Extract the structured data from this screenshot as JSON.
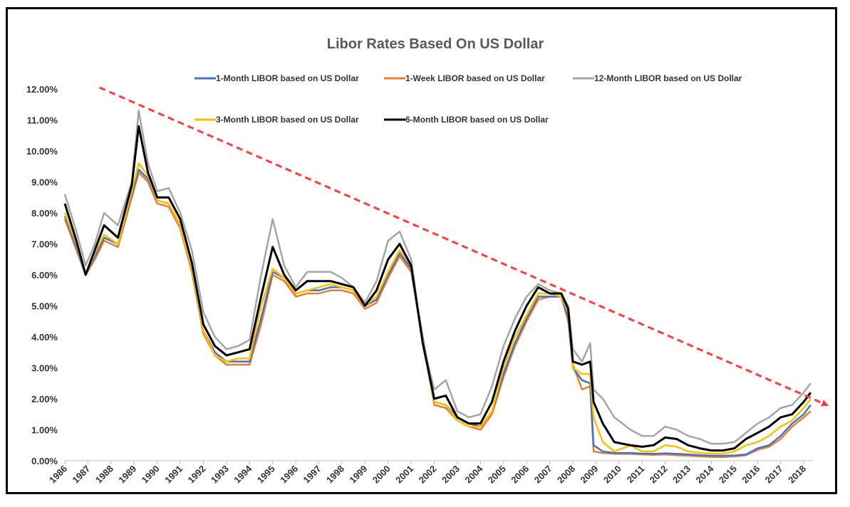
{
  "chart_data": {
    "type": "line",
    "title": "Libor Rates Based On US Dollar",
    "xlabel": "",
    "ylabel": "",
    "xlim": [
      1986,
      2018.4
    ],
    "ylim": [
      0,
      12
    ],
    "y_ticks": [
      "0.00%",
      "1.00%",
      "2.00%",
      "3.00%",
      "4.00%",
      "5.00%",
      "6.00%",
      "7.00%",
      "8.00%",
      "9.00%",
      "10.00%",
      "11.00%",
      "12.00%"
    ],
    "x_ticks": [
      "1986",
      "1987",
      "1988",
      "1989",
      "1990",
      "1991",
      "1992",
      "1993",
      "1994",
      "1995",
      "1996",
      "1997",
      "1998",
      "1999",
      "2000",
      "2001",
      "2002",
      "2003",
      "2004",
      "2005",
      "2006",
      "2007",
      "2008",
      "2009",
      "2010",
      "2011",
      "2012",
      "2013",
      "2014",
      "2015",
      "2016",
      "2017",
      "2018"
    ],
    "grid": false,
    "legend_position": "top",
    "series": [
      {
        "name": "1-Month LIBOR based on US Dollar",
        "color": "#4472C4",
        "x": [
          1986.0,
          1986.5,
          1986.9,
          1987.3,
          1987.7,
          1988.3,
          1988.9,
          1989.2,
          1989.6,
          1990.0,
          1990.5,
          1991.0,
          1991.5,
          1992.0,
          1992.5,
          1993.0,
          1993.5,
          1994.0,
          1994.5,
          1995.0,
          1995.5,
          1996.0,
          1996.5,
          1997.0,
          1997.5,
          1998.0,
          1998.5,
          1999.0,
          1999.5,
          2000.0,
          2000.5,
          2001.0,
          2001.5,
          2002.0,
          2002.5,
          2003.0,
          2003.5,
          2004.0,
          2004.5,
          2005.0,
          2005.5,
          2006.0,
          2006.5,
          2007.0,
          2007.5,
          2007.8,
          2008.0,
          2008.4,
          2008.75,
          2008.9,
          2009.3,
          2009.8,
          2010.5,
          2011.0,
          2011.5,
          2012.0,
          2012.5,
          2013.0,
          2013.5,
          2014.0,
          2014.5,
          2015.0,
          2015.5,
          2016.0,
          2016.5,
          2017.0,
          2017.5,
          2018.0,
          2018.3
        ],
        "y": [
          7.9,
          6.9,
          6.0,
          6.6,
          7.2,
          7.0,
          8.6,
          9.4,
          9.1,
          8.4,
          8.3,
          7.6,
          6.2,
          4.2,
          3.5,
          3.2,
          3.2,
          3.2,
          4.6,
          6.1,
          5.9,
          5.4,
          5.5,
          5.5,
          5.6,
          5.6,
          5.5,
          5.0,
          5.2,
          6.0,
          6.7,
          6.2,
          4.0,
          1.9,
          1.8,
          1.4,
          1.2,
          1.1,
          1.6,
          2.8,
          3.8,
          4.6,
          5.3,
          5.3,
          5.3,
          4.6,
          3.0,
          2.6,
          2.5,
          0.5,
          0.3,
          0.25,
          0.25,
          0.23,
          0.22,
          0.24,
          0.22,
          0.2,
          0.18,
          0.16,
          0.16,
          0.17,
          0.2,
          0.4,
          0.5,
          0.8,
          1.2,
          1.5,
          1.8
        ]
      },
      {
        "name": "1-Week LIBOR based on US Dollar",
        "color": "#ED7D31",
        "x": [
          1986.0,
          1986.5,
          1986.9,
          1987.3,
          1987.7,
          1988.3,
          1988.9,
          1989.2,
          1989.6,
          1990.0,
          1990.5,
          1991.0,
          1991.5,
          1992.0,
          1992.5,
          1993.0,
          1993.5,
          1994.0,
          1994.5,
          1995.0,
          1995.5,
          1996.0,
          1996.5,
          1997.0,
          1997.5,
          1998.0,
          1998.5,
          1999.0,
          1999.5,
          2000.0,
          2000.5,
          2001.0,
          2001.5,
          2002.0,
          2002.5,
          2003.0,
          2003.5,
          2004.0,
          2004.5,
          2005.0,
          2005.5,
          2006.0,
          2006.5,
          2007.0,
          2007.5,
          2007.8,
          2008.0,
          2008.4,
          2008.75,
          2008.9,
          2009.3,
          2009.8,
          2010.5,
          2011.0,
          2011.5,
          2012.0,
          2012.5,
          2013.0,
          2013.5,
          2014.0,
          2014.5,
          2015.0,
          2015.5,
          2016.0,
          2016.5,
          2017.0,
          2017.5,
          2018.0,
          2018.3
        ],
        "y": [
          7.8,
          6.8,
          6.0,
          6.5,
          7.1,
          6.9,
          8.5,
          9.3,
          9.0,
          8.3,
          8.2,
          7.5,
          6.1,
          4.1,
          3.4,
          3.1,
          3.1,
          3.1,
          4.4,
          6.0,
          5.8,
          5.3,
          5.4,
          5.4,
          5.5,
          5.5,
          5.4,
          4.9,
          5.1,
          5.9,
          6.6,
          6.1,
          3.9,
          1.8,
          1.7,
          1.3,
          1.1,
          1.0,
          1.5,
          2.7,
          3.7,
          4.5,
          5.2,
          5.3,
          5.3,
          4.5,
          3.1,
          2.3,
          2.4,
          0.3,
          0.25,
          0.22,
          0.22,
          0.2,
          0.19,
          0.2,
          0.18,
          0.16,
          0.14,
          0.12,
          0.12,
          0.14,
          0.18,
          0.35,
          0.45,
          0.7,
          1.1,
          1.4,
          1.6
        ]
      },
      {
        "name": "12-Month LIBOR based on US Dollar",
        "color": "#A5A5A5",
        "x": [
          1986.0,
          1986.5,
          1986.9,
          1987.3,
          1987.7,
          1988.3,
          1988.9,
          1989.2,
          1989.6,
          1990.0,
          1990.5,
          1991.0,
          1991.5,
          1992.0,
          1992.5,
          1993.0,
          1993.5,
          1994.0,
          1994.5,
          1995.0,
          1995.5,
          1996.0,
          1996.5,
          1997.0,
          1997.5,
          1998.0,
          1998.5,
          1999.0,
          1999.5,
          2000.0,
          2000.5,
          2001.0,
          2001.5,
          2002.0,
          2002.5,
          2003.0,
          2003.5,
          2004.0,
          2004.5,
          2005.0,
          2005.5,
          2006.0,
          2006.5,
          2007.0,
          2007.5,
          2007.8,
          2008.0,
          2008.4,
          2008.75,
          2008.9,
          2009.3,
          2009.8,
          2010.5,
          2011.0,
          2011.5,
          2012.0,
          2012.5,
          2013.0,
          2013.5,
          2014.0,
          2014.5,
          2015.0,
          2015.5,
          2016.0,
          2016.5,
          2017.0,
          2017.5,
          2018.0,
          2018.3
        ],
        "y": [
          8.6,
          7.4,
          6.3,
          7.0,
          8.0,
          7.6,
          9.0,
          11.3,
          9.6,
          8.7,
          8.8,
          8.0,
          6.8,
          4.8,
          4.0,
          3.6,
          3.7,
          3.9,
          6.0,
          7.8,
          6.3,
          5.6,
          6.1,
          6.1,
          6.1,
          5.9,
          5.6,
          5.1,
          5.8,
          7.1,
          7.4,
          6.5,
          3.8,
          2.3,
          2.6,
          1.6,
          1.4,
          1.5,
          2.4,
          3.7,
          4.6,
          5.3,
          5.7,
          5.5,
          5.4,
          5.0,
          3.6,
          3.2,
          3.8,
          2.3,
          2.0,
          1.4,
          1.0,
          0.8,
          0.8,
          1.1,
          1.0,
          0.8,
          0.7,
          0.55,
          0.55,
          0.6,
          0.9,
          1.2,
          1.4,
          1.7,
          1.8,
          2.2,
          2.5
        ]
      },
      {
        "name": "3-Month LIBOR based on US Dollar",
        "color": "#FFC000",
        "x": [
          1986.0,
          1986.5,
          1986.9,
          1987.3,
          1987.7,
          1988.3,
          1988.9,
          1989.2,
          1989.6,
          1990.0,
          1990.5,
          1991.0,
          1991.5,
          1992.0,
          1992.5,
          1993.0,
          1993.5,
          1994.0,
          1994.5,
          1995.0,
          1995.5,
          1996.0,
          1996.5,
          1997.0,
          1997.5,
          1998.0,
          1998.5,
          1999.0,
          1999.5,
          2000.0,
          2000.5,
          2001.0,
          2001.5,
          2002.0,
          2002.5,
          2003.0,
          2003.5,
          2004.0,
          2004.5,
          2005.0,
          2005.5,
          2006.0,
          2006.5,
          2007.0,
          2007.5,
          2007.8,
          2008.0,
          2008.4,
          2008.75,
          2008.9,
          2009.3,
          2009.8,
          2010.5,
          2011.0,
          2011.5,
          2012.0,
          2012.5,
          2013.0,
          2013.5,
          2014.0,
          2014.5,
          2015.0,
          2015.5,
          2016.0,
          2016.5,
          2017.0,
          2017.5,
          2018.0,
          2018.3
        ],
        "y": [
          8.0,
          7.0,
          6.0,
          6.7,
          7.3,
          7.0,
          8.7,
          9.6,
          9.2,
          8.4,
          8.3,
          7.6,
          6.2,
          4.2,
          3.4,
          3.2,
          3.3,
          3.3,
          5.0,
          6.2,
          5.9,
          5.4,
          5.5,
          5.6,
          5.7,
          5.6,
          5.5,
          5.0,
          5.3,
          6.1,
          6.8,
          6.3,
          3.9,
          1.9,
          1.8,
          1.3,
          1.1,
          1.1,
          1.6,
          3.0,
          4.0,
          4.7,
          5.4,
          5.4,
          5.3,
          4.8,
          3.0,
          2.8,
          2.8,
          1.4,
          0.6,
          0.3,
          0.5,
          0.3,
          0.3,
          0.5,
          0.45,
          0.3,
          0.25,
          0.23,
          0.23,
          0.3,
          0.5,
          0.6,
          0.8,
          1.1,
          1.3,
          1.7,
          2.0
        ]
      },
      {
        "name": "6-Month LIBOR based on US Dollar",
        "color": "#000000",
        "x": [
          1986.0,
          1986.5,
          1986.9,
          1987.3,
          1987.7,
          1988.3,
          1988.9,
          1989.2,
          1989.6,
          1990.0,
          1990.5,
          1991.0,
          1991.5,
          1992.0,
          1992.5,
          1993.0,
          1993.5,
          1994.0,
          1994.5,
          1995.0,
          1995.5,
          1996.0,
          1996.5,
          1997.0,
          1997.5,
          1998.0,
          1998.5,
          1999.0,
          1999.5,
          2000.0,
          2000.5,
          2001.0,
          2001.5,
          2002.0,
          2002.5,
          2003.0,
          2003.5,
          2004.0,
          2004.5,
          2005.0,
          2005.5,
          2006.0,
          2006.5,
          2007.0,
          2007.5,
          2007.8,
          2008.0,
          2008.4,
          2008.75,
          2008.9,
          2009.3,
          2009.8,
          2010.5,
          2011.0,
          2011.5,
          2012.0,
          2012.5,
          2013.0,
          2013.5,
          2014.0,
          2014.5,
          2015.0,
          2015.5,
          2016.0,
          2016.5,
          2017.0,
          2017.5,
          2018.0,
          2018.3
        ],
        "y": [
          8.3,
          7.1,
          6.0,
          6.8,
          7.6,
          7.2,
          8.9,
          10.8,
          9.3,
          8.5,
          8.5,
          7.8,
          6.4,
          4.4,
          3.7,
          3.4,
          3.5,
          3.6,
          5.3,
          6.9,
          6.0,
          5.5,
          5.8,
          5.8,
          5.8,
          5.7,
          5.6,
          5.0,
          5.5,
          6.5,
          7.0,
          6.3,
          3.8,
          2.0,
          2.1,
          1.4,
          1.2,
          1.2,
          1.9,
          3.2,
          4.2,
          5.0,
          5.6,
          5.4,
          5.4,
          4.9,
          3.2,
          3.1,
          3.2,
          1.9,
          1.2,
          0.6,
          0.5,
          0.45,
          0.5,
          0.75,
          0.7,
          0.5,
          0.4,
          0.33,
          0.33,
          0.4,
          0.7,
          0.9,
          1.1,
          1.4,
          1.5,
          1.9,
          2.2
        ]
      }
    ],
    "trendline": {
      "color": "#FF3B3B",
      "style": "dashed",
      "x": [
        1987.5,
        2019.0
      ],
      "y": [
        12.05,
        1.8
      ]
    }
  }
}
